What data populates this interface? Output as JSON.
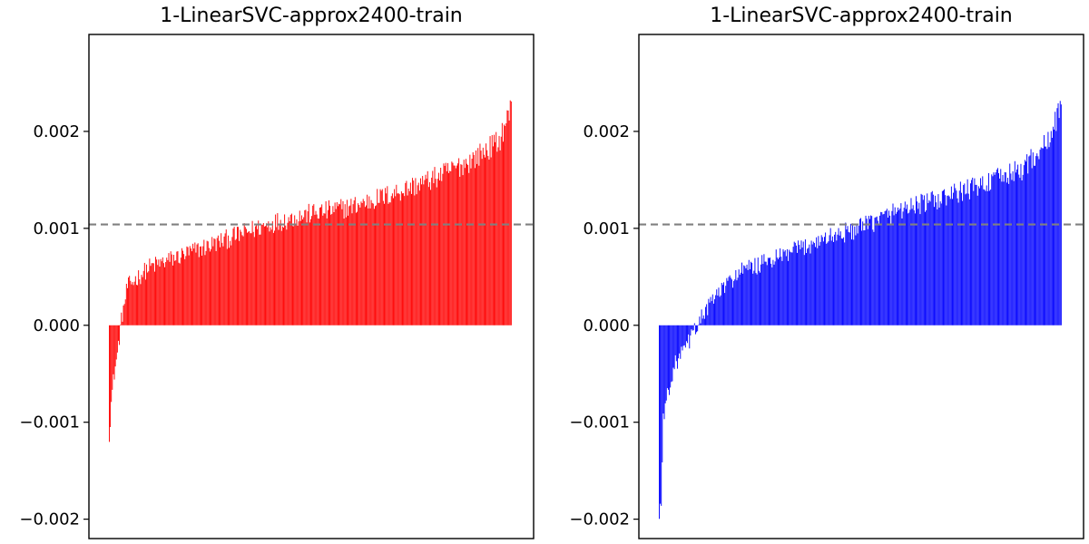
{
  "chart_data": [
    {
      "type": "bar",
      "title": "1-LinearSVC-approx2400-train",
      "xlabel": "",
      "ylabel": "",
      "ylim": [
        -0.0022,
        0.003
      ],
      "yticks": [
        "0.002",
        "0.001",
        "0.000",
        "−0.001",
        "−0.002"
      ],
      "ytick_values": [
        0.002,
        0.001,
        0.0,
        -0.001,
        -0.002
      ],
      "x_axis_ticks": false,
      "reference_line": {
        "y": 0.00104,
        "style": "dashed",
        "color": "#808080"
      },
      "bar_color": "#ff0000",
      "sorted_ascending": true,
      "n_bars": 400,
      "value_profile": [
        [
          0.0,
          -0.0011
        ],
        [
          0.005,
          -0.0008
        ],
        [
          0.012,
          -0.0005
        ],
        [
          0.02,
          -0.0003
        ],
        [
          0.03,
          5e-05
        ],
        [
          0.045,
          0.0004
        ],
        [
          0.1,
          0.0006
        ],
        [
          0.2,
          0.00075
        ],
        [
          0.3,
          0.0009
        ],
        [
          0.4,
          0.00105
        ],
        [
          0.5,
          0.00115
        ],
        [
          0.6,
          0.00122
        ],
        [
          0.7,
          0.00135
        ],
        [
          0.8,
          0.0015
        ],
        [
          0.9,
          0.0017
        ],
        [
          0.97,
          0.0019
        ],
        [
          1.0,
          0.00225
        ]
      ]
    },
    {
      "type": "bar",
      "title": "1-LinearSVC-approx2400-train",
      "xlabel": "",
      "ylabel": "",
      "ylim": [
        -0.0022,
        0.003
      ],
      "yticks": [
        "0.002",
        "0.001",
        "0.000",
        "−0.001",
        "−0.002"
      ],
      "ytick_values": [
        0.002,
        0.001,
        0.0,
        -0.001,
        -0.002
      ],
      "x_axis_ticks": false,
      "reference_line": {
        "y": 0.00104,
        "style": "dashed",
        "color": "#808080"
      },
      "bar_color": "#0000ff",
      "sorted_ascending": true,
      "n_bars": 400,
      "value_profile": [
        [
          0.0,
          -0.002
        ],
        [
          0.006,
          -0.0017
        ],
        [
          0.01,
          -0.001
        ],
        [
          0.02,
          -0.0007
        ],
        [
          0.04,
          -0.0004
        ],
        [
          0.07,
          -0.0002
        ],
        [
          0.1,
          5e-05
        ],
        [
          0.14,
          0.0003
        ],
        [
          0.2,
          0.00055
        ],
        [
          0.3,
          0.0007
        ],
        [
          0.4,
          0.00088
        ],
        [
          0.5,
          0.001
        ],
        [
          0.6,
          0.0012
        ],
        [
          0.7,
          0.0013
        ],
        [
          0.8,
          0.00145
        ],
        [
          0.9,
          0.0016
        ],
        [
          0.97,
          0.0019
        ],
        [
          1.0,
          0.0023
        ]
      ]
    }
  ]
}
